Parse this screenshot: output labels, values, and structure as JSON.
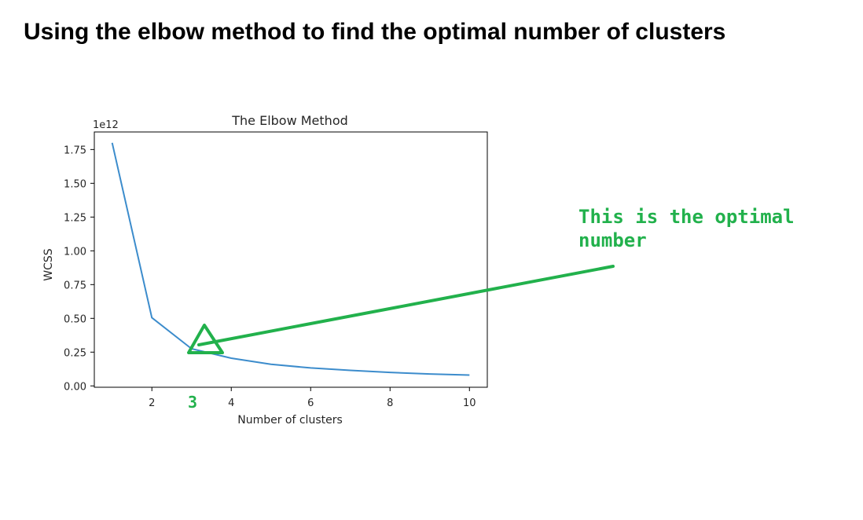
{
  "page": {
    "heading": "Using the elbow method to find the optimal number of clusters"
  },
  "chart_data": {
    "type": "line",
    "title": "The Elbow Method",
    "xlabel": "Number of clusters",
    "ylabel": "WCSS",
    "y_multiplier": "1e12",
    "x": [
      1,
      2,
      3,
      4,
      5,
      6,
      7,
      8,
      9,
      10
    ],
    "series": [
      {
        "values": [
          1.8,
          0.505,
          0.275,
          0.205,
          0.16,
          0.133,
          0.115,
          0.1,
          0.088,
          0.08
        ]
      }
    ],
    "xlim": [
      0.55,
      10.45
    ],
    "ylim": [
      -0.01,
      1.88
    ],
    "xticks": [
      2,
      4,
      6,
      8,
      10
    ],
    "yticks": [
      0.0,
      0.25,
      0.5,
      0.75,
      1.0,
      1.25,
      1.5,
      1.75
    ],
    "grid": false,
    "line_color": "#3c8ccc"
  },
  "annotation": {
    "text_lines": [
      "This is the optimal",
      "number"
    ],
    "marker_label": "3",
    "color": "#22b14c"
  }
}
